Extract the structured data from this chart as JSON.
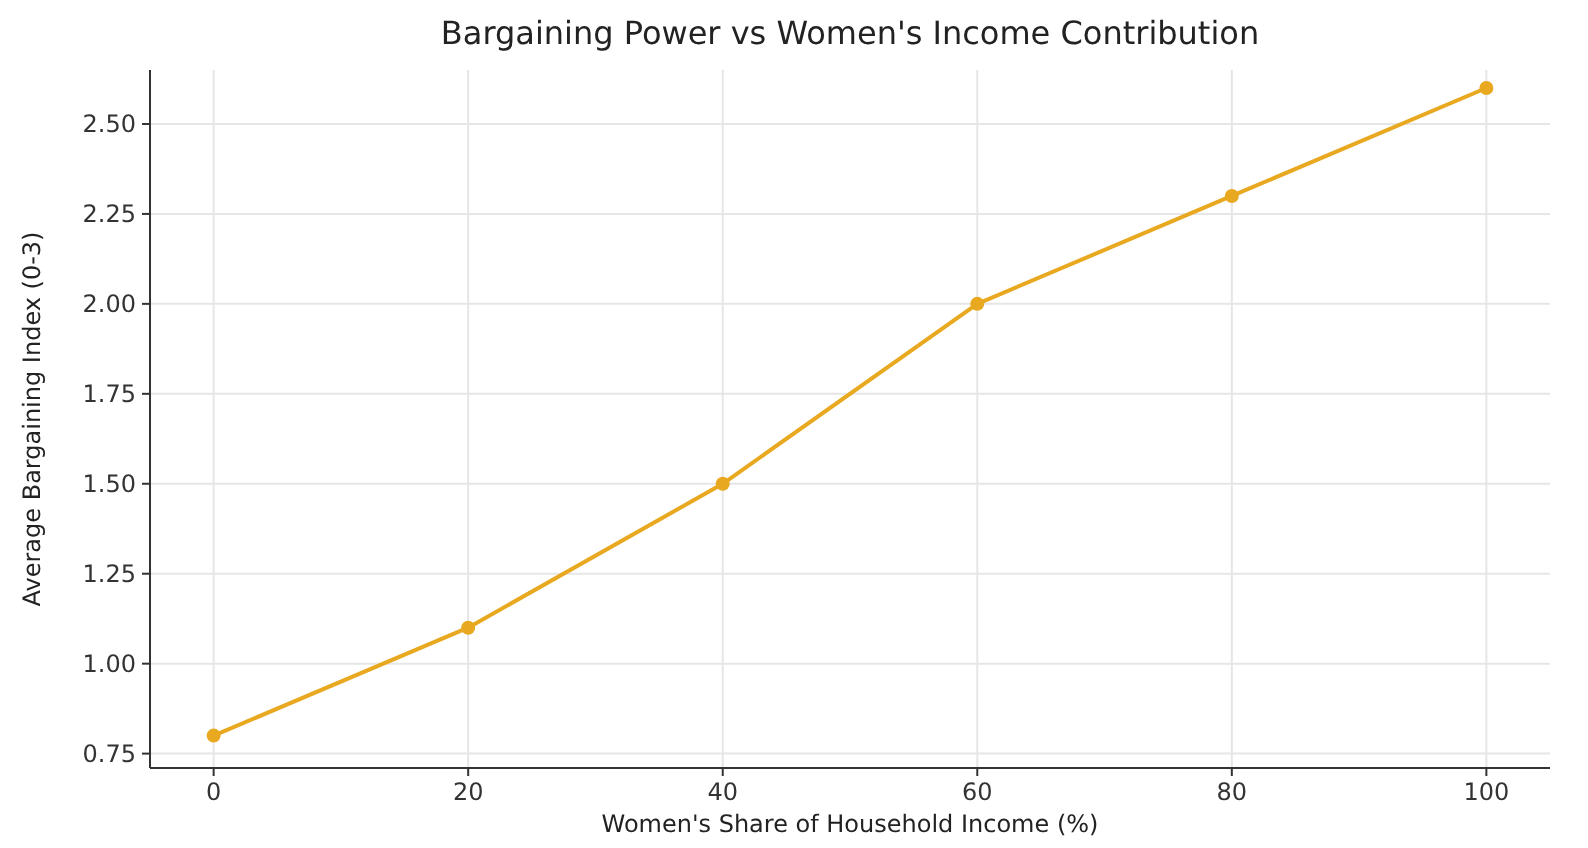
{
  "chart_data": {
    "type": "line",
    "title": "Bargaining Power vs Women's Income Contribution",
    "xlabel": "Women's Share of Household Income (%)",
    "ylabel": "Average Bargaining Index (0-3)",
    "x": [
      0,
      20,
      40,
      60,
      80,
      100
    ],
    "series": [
      {
        "color": "#e8a820",
        "values": [
          0.8,
          1.1,
          1.5,
          2.0,
          2.3,
          2.6
        ]
      }
    ],
    "xlim": [
      -5,
      105
    ],
    "xticks": [
      0,
      20,
      40,
      60,
      80,
      100
    ],
    "ylim": [
      0.71,
      2.65
    ],
    "yticks": [
      {
        "value": 0.75,
        "label": "0.75"
      },
      {
        "value": 1,
        "label": "1.00"
      },
      {
        "value": 1.25,
        "label": "1.25"
      },
      {
        "value": 1.5,
        "label": "1.50"
      },
      {
        "value": 1.75,
        "label": "1.75"
      },
      {
        "value": 2,
        "label": "2.00"
      },
      {
        "value": 2.25,
        "label": "2.25"
      },
      {
        "value": 2.5,
        "label": "2.50"
      }
    ],
    "grid": true,
    "marker": "circle",
    "line_style": "solid"
  }
}
